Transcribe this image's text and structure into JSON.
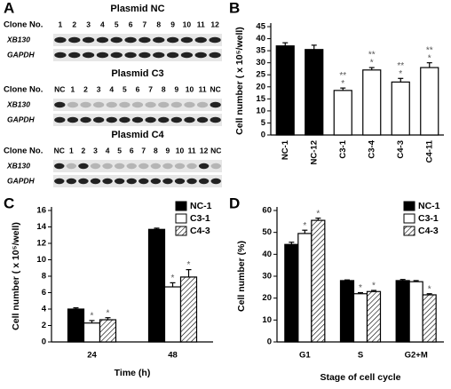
{
  "panel_a": {
    "label": "A",
    "blocks": [
      {
        "title": "Plasmid NC",
        "clone_header": "Clone No.",
        "clones": [
          "1",
          "2",
          "3",
          "4",
          "5",
          "6",
          "7",
          "8",
          "9",
          "10",
          "11",
          "12"
        ],
        "rows": [
          "XB130",
          "GAPDH"
        ]
      },
      {
        "title": "Plasmid C3",
        "clone_header": "Clone No.",
        "clones": [
          "NC",
          "1",
          "2",
          "3",
          "4",
          "5",
          "6",
          "7",
          "8",
          "9",
          "10",
          "11",
          "NC"
        ],
        "rows": [
          "XB130",
          "GAPDH"
        ]
      },
      {
        "title": "Plasmid C4",
        "clone_header": "Clone No.",
        "clones": [
          "NC",
          "1",
          "2",
          "3",
          "4",
          "5",
          "6",
          "7",
          "8",
          "9",
          "10",
          "11",
          "12",
          "NC"
        ],
        "rows": [
          "XB130",
          "GAPDH"
        ]
      }
    ]
  },
  "chart_data": [
    {
      "type": "bar",
      "label": "B",
      "ylabel": "Cell number ( x 10⁵/well)",
      "categories": [
        "NC-1",
        "NC-12",
        "C3-1",
        "C3-4",
        "C4-3",
        "C4-11"
      ],
      "values": [
        37,
        35.5,
        18.5,
        27,
        22,
        28
      ],
      "errors": [
        1.3,
        1.8,
        1,
        1,
        1.5,
        2
      ],
      "colors": [
        "#000000",
        "#000000",
        "#ffffff",
        "#ffffff",
        "#ffffff",
        "#ffffff"
      ],
      "annotations": [
        null,
        null,
        [
          "**",
          "*"
        ],
        [
          "**",
          "*"
        ],
        [
          "**",
          "*"
        ],
        [
          "**",
          "*"
        ]
      ],
      "ylim": [
        0,
        45
      ],
      "yticks": [
        0,
        5,
        10,
        15,
        20,
        25,
        30,
        35,
        40,
        45
      ]
    },
    {
      "type": "grouped_bar",
      "label": "C",
      "ylabel": "Cell number ( x 10⁵/well)",
      "xlabel": "Time (h)",
      "categories": [
        "24",
        "48"
      ],
      "legend": "upper right",
      "series": [
        {
          "name": "NC-1",
          "color": "#000000",
          "values": [
            4.0,
            13.7
          ],
          "errors": [
            0.15,
            0.15
          ],
          "annotations": [
            null,
            null
          ]
        },
        {
          "name": "C3-1",
          "color": "#ffffff",
          "values": [
            2.3,
            6.7
          ],
          "errors": [
            0.3,
            0.5
          ],
          "annotations": [
            "*",
            "*"
          ]
        },
        {
          "name": "C4-3",
          "color": "#ffffff",
          "hatch": true,
          "values": [
            2.7,
            7.9
          ],
          "errors": [
            0.25,
            0.9
          ],
          "annotations": [
            "*",
            "*"
          ]
        }
      ],
      "ylim": [
        0,
        16
      ],
      "yticks": [
        0,
        2,
        4,
        6,
        8,
        10,
        12,
        14,
        16
      ]
    },
    {
      "type": "grouped_bar",
      "label": "D",
      "ylabel": "Cell number (%)",
      "xlabel": "Stage of cell cycle",
      "categories": [
        "G1",
        "S",
        "G2+M"
      ],
      "legend": "upper right",
      "series": [
        {
          "name": "NC-1",
          "color": "#000000",
          "values": [
            44.5,
            28,
            28
          ],
          "errors": [
            1,
            0.3,
            0.5
          ],
          "annotations": [
            null,
            null,
            null
          ]
        },
        {
          "name": "C3-1",
          "color": "#ffffff",
          "values": [
            49.5,
            22,
            27.5
          ],
          "errors": [
            1.5,
            0.5,
            0.5
          ],
          "annotations": [
            "*",
            "*",
            null
          ]
        },
        {
          "name": "C4-3",
          "color": "#ffffff",
          "hatch": true,
          "values": [
            55.5,
            23,
            21.5
          ],
          "errors": [
            1,
            0.5,
            0.5
          ],
          "annotations": [
            "*",
            "*",
            "*"
          ]
        }
      ],
      "ylim": [
        0,
        60
      ],
      "yticks": [
        0,
        10,
        20,
        30,
        40,
        50,
        60
      ]
    }
  ]
}
